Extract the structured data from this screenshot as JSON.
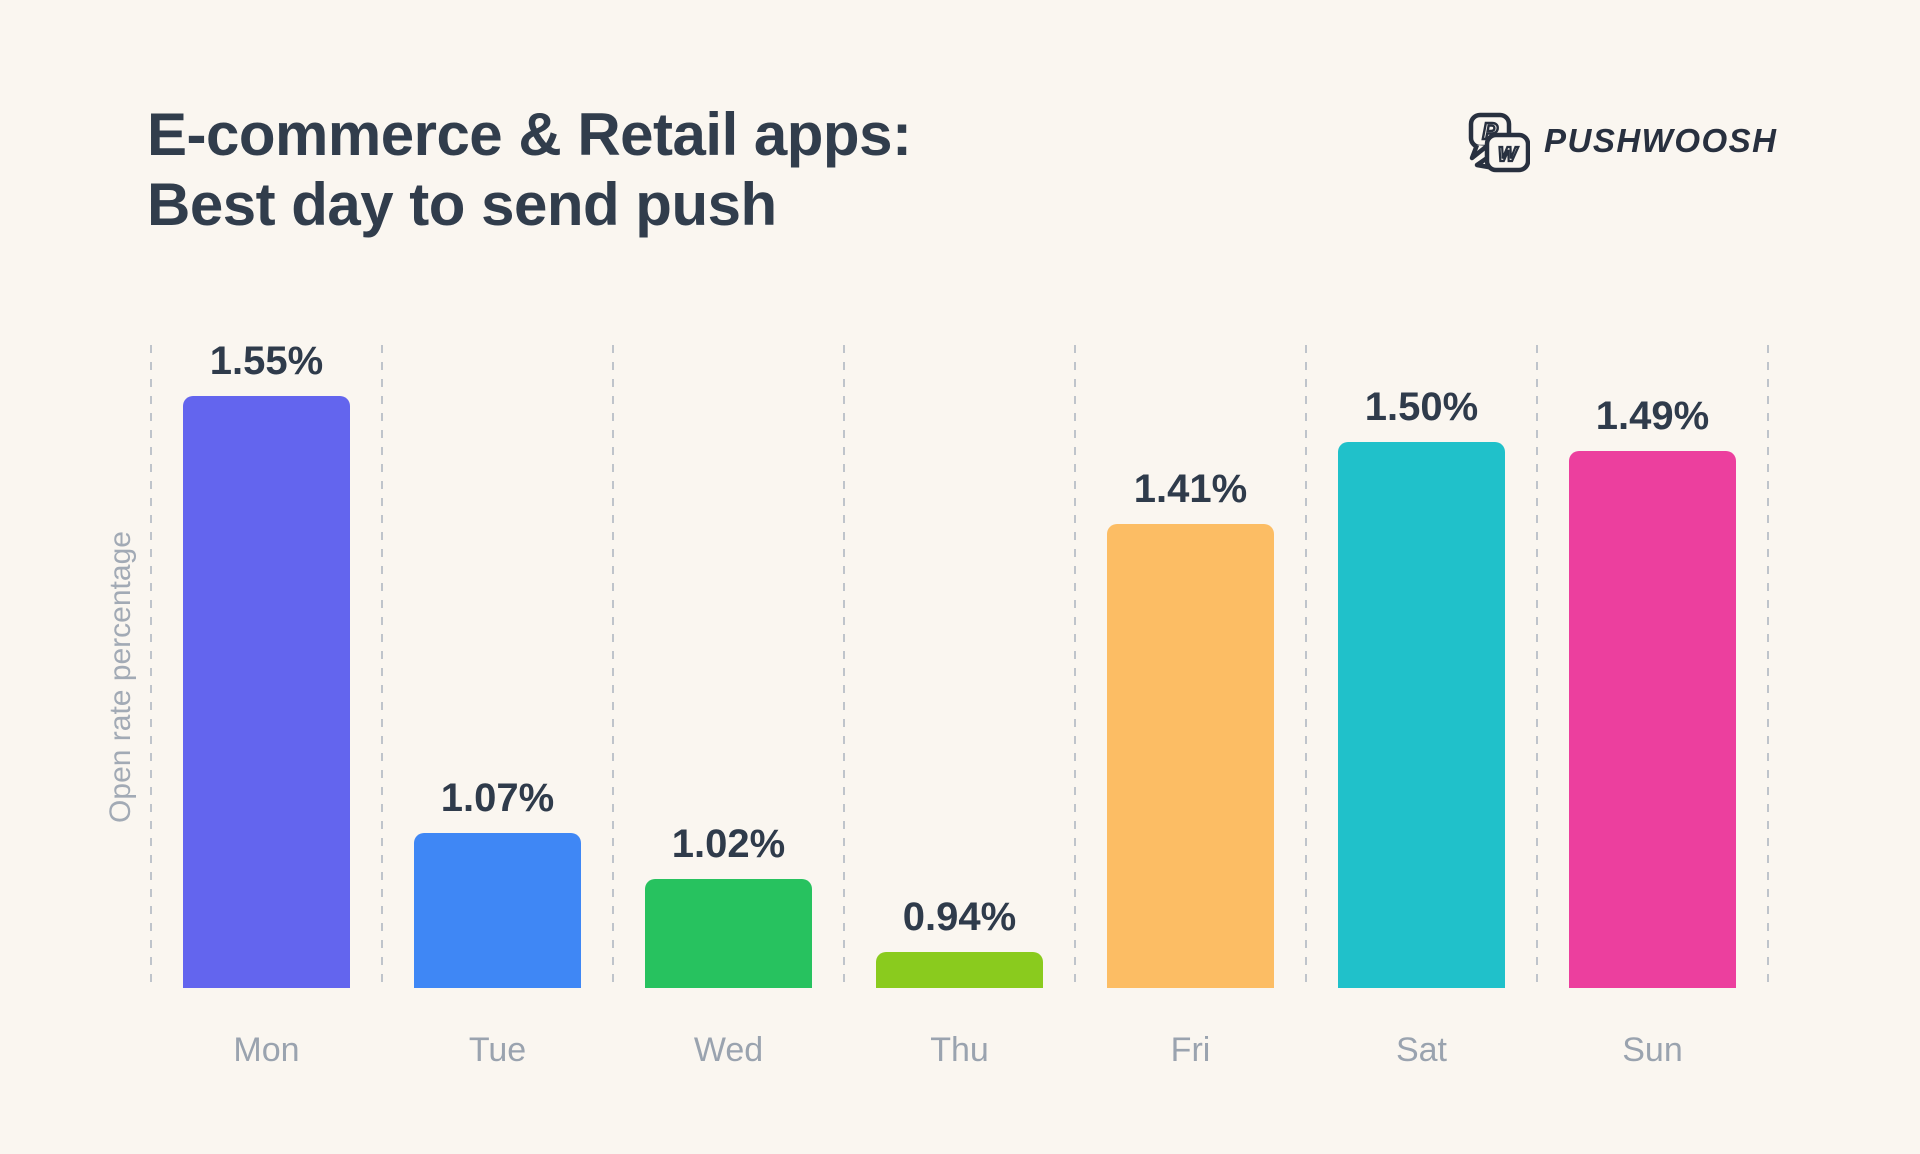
{
  "page": {
    "background_color": "#faf6f0"
  },
  "header": {
    "title_line1": "E-commerce & Retail apps:",
    "title_line2": "Best day to send push",
    "title_color": "#313d4c",
    "logo": {
      "text": "PUSHWOOSH",
      "icon": "pushwoosh-speech-bubbles",
      "color": "#28303f"
    }
  },
  "chart_data": {
    "type": "bar",
    "title": "E-commerce & Retail apps: Best day to send push",
    "categories": [
      "Mon",
      "Tue",
      "Wed",
      "Thu",
      "Fri",
      "Sat",
      "Sun"
    ],
    "values": [
      1.55,
      1.07,
      1.02,
      0.94,
      1.41,
      1.5,
      1.49
    ],
    "value_labels": [
      "1.55%",
      "1.07%",
      "1.02%",
      "0.94%",
      "1.41%",
      "1.50%",
      "1.49%"
    ],
    "bar_colors": [
      "#6365ee",
      "#3f87f5",
      "#27c25f",
      "#8acb1e",
      "#fcbd64",
      "#20c1ca",
      "#ec3f9e"
    ],
    "xlabel": "",
    "ylabel": "Open rate percentage",
    "legend_position": "none",
    "grid": "vertical dashed lines between categories",
    "y_axis_ticks_visible": false,
    "y_baseline_value": 0.9,
    "y_top_value": 1.62,
    "value_label_color": "#2f3b4b",
    "category_label_color": "#9aa3af",
    "gridline_color": "#bfc4cb"
  }
}
